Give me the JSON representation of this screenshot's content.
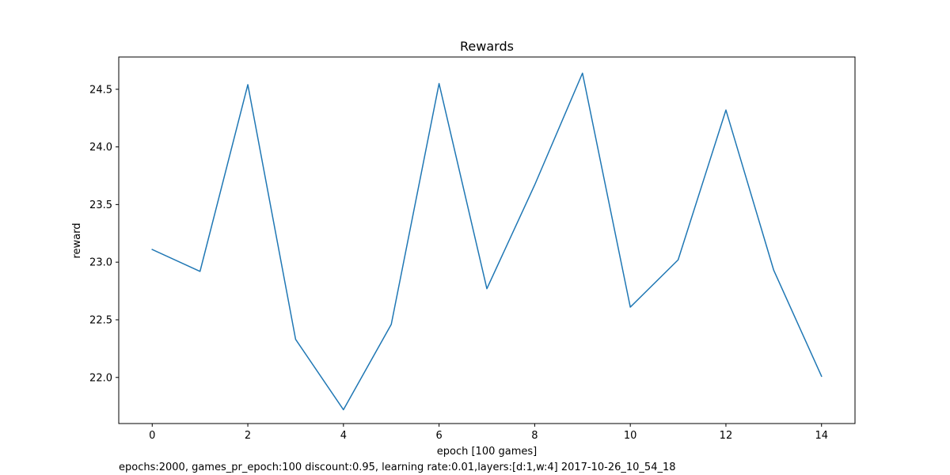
{
  "chart_data": {
    "type": "line",
    "title": "Rewards",
    "xlabel": "epoch [100 games]",
    "ylabel": "reward",
    "caption": "epochs:2000, games_pr_epoch:100 discount:0.95, learning rate:0.01,layers:[d:1,w:4] 2017-10-26_10_54_18",
    "x": [
      0,
      1,
      2,
      3,
      4,
      5,
      6,
      7,
      8,
      9,
      10,
      11,
      12,
      13,
      14
    ],
    "series": [
      {
        "values": [
          23.11,
          22.92,
          24.54,
          22.33,
          21.72,
          22.46,
          24.55,
          22.77,
          23.67,
          24.64,
          22.61,
          23.02,
          24.32,
          22.93,
          22.01
        ]
      }
    ],
    "xlim": [
      -0.7,
      14.7
    ],
    "ylim": [
      21.6,
      24.78
    ],
    "xticks": [
      0,
      2,
      4,
      6,
      8,
      10,
      12,
      14
    ],
    "yticks": [
      "22.0",
      "22.5",
      "23.0",
      "23.5",
      "24.0",
      "24.5"
    ],
    "grid": false,
    "line_color": "#1f77b4"
  }
}
